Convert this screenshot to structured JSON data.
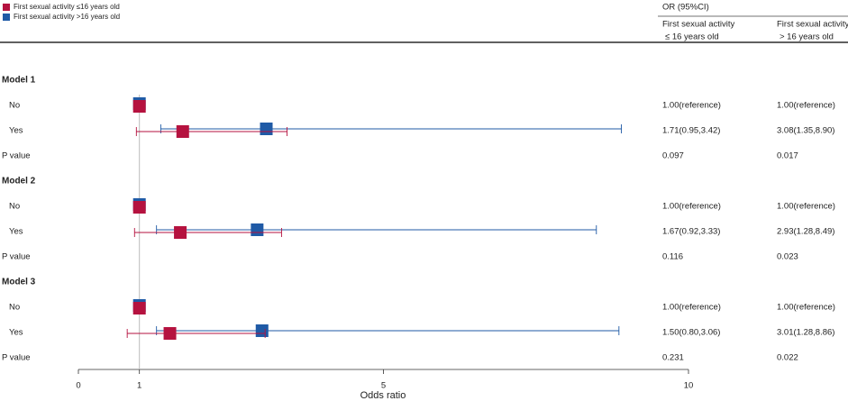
{
  "chart_data": {
    "type": "forest",
    "header": "OR (95%CI)",
    "models": [
      "Model 1",
      "Model 2",
      "Model 3"
    ],
    "categories": [
      "No",
      "Yes",
      "No",
      "Yes",
      "No",
      "Yes"
    ],
    "p_label": "P value",
    "series": [
      {
        "name": "First sexual activity ≤16 years old",
        "color": "#b5123f",
        "column_header": [
          "First sexual activity",
          "≤ 16 years old"
        ],
        "values": [
          1.0,
          1.71,
          1.0,
          1.67,
          1.0,
          1.5
        ],
        "lower": [
          null,
          0.95,
          null,
          0.92,
          null,
          0.8
        ],
        "upper": [
          null,
          3.42,
          null,
          3.33,
          null,
          3.06
        ],
        "value_labels": [
          "1.00(reference)",
          "1.71(0.95,3.42)",
          "1.00(reference)",
          "1.67(0.92,3.33)",
          "1.00(reference)",
          "1.50(0.80,3.06)"
        ],
        "p_values": [
          0.097,
          0.116,
          0.231
        ]
      },
      {
        "name": "First sexual activity >16 years old",
        "color": "#1f5aa6",
        "column_header": [
          "First sexual activity",
          "> 16 years old"
        ],
        "values": [
          1.0,
          3.08,
          1.0,
          2.93,
          1.0,
          3.01
        ],
        "lower": [
          null,
          1.35,
          null,
          1.28,
          null,
          1.28
        ],
        "upper": [
          null,
          8.9,
          null,
          8.49,
          null,
          8.86
        ],
        "value_labels": [
          "1.00(reference)",
          "3.08(1.35,8.90)",
          "1.00(reference)",
          "2.93(1.28,8.49)",
          "1.00(reference)",
          "3.01(1.28,8.86)"
        ],
        "p_values": [
          0.017,
          0.023,
          0.022
        ]
      }
    ],
    "xlabel": "Odds ratio",
    "xlim": [
      0,
      10
    ],
    "xticks": [
      0,
      1,
      5,
      10
    ],
    "ref_line": 1
  }
}
